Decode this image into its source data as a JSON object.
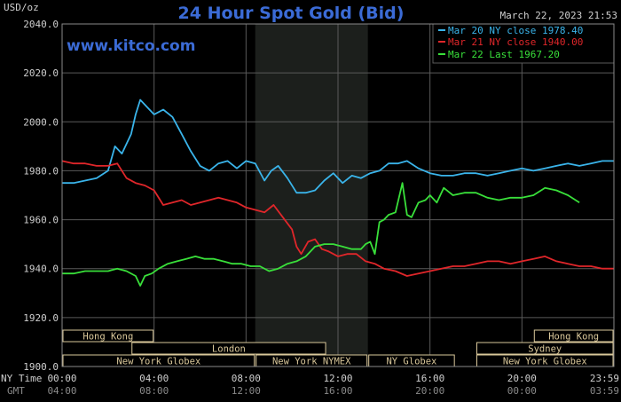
{
  "header": {
    "title": "24 Hour Spot Gold (Bid)",
    "unit": "USD/oz",
    "timestamp": "March 22, 2023 21:53",
    "watermark": "www.kitco.com"
  },
  "colors": {
    "background": "#000000",
    "plot_background": "#000000",
    "ny_session_shade": "#1c1f1c",
    "grid": "#5a5a5a",
    "title": "#3b6bd6",
    "watermark": "#3b6bd6",
    "axis_text": "#cfcfcf",
    "session_box": "#d9c79a"
  },
  "sessions": [
    {
      "label": "Hong Kong",
      "row": 0,
      "start": 0,
      "end": 4.0
    },
    {
      "label": "London",
      "row": 1,
      "start": 3.0,
      "end": 11.5
    },
    {
      "label": "New York Globex",
      "row": 2,
      "start": 0,
      "end": 8.4
    },
    {
      "label": "New York NYMEX",
      "row": 2,
      "start": 8.4,
      "end": 13.3
    },
    {
      "label": "NY Globex",
      "row": 2,
      "start": 13.3,
      "end": 17.1
    },
    {
      "label": "Hong Kong",
      "row": 0,
      "start": 20.5,
      "end": 24
    },
    {
      "label": "Sydney",
      "row": 1,
      "start": 18.0,
      "end": 24
    },
    {
      "label": "New York Globex",
      "row": 2,
      "start": 18.0,
      "end": 24
    }
  ],
  "chart_data": {
    "type": "line",
    "title": "24 Hour Spot Gold (Bid)",
    "ylabel": "USD/oz",
    "ylim": [
      1900,
      2040
    ],
    "yticks": [
      "2040.0",
      "2020.0",
      "2000.0",
      "1980.0",
      "1960.0",
      "1940.0",
      "1920.0",
      "1900.0"
    ],
    "xlim": [
      0,
      24
    ],
    "x_tick_positions": [
      0,
      4,
      8,
      12,
      16,
      20,
      24
    ],
    "x_ticks_ny": [
      "00:00",
      "04:00",
      "08:00",
      "12:00",
      "16:00",
      "20:00",
      "23:59"
    ],
    "x_ticks_gmt": [
      "04:00",
      "08:00",
      "12:00",
      "16:00",
      "20:00",
      "00:00",
      "03:59"
    ],
    "x_row_labels": [
      "NY Time",
      "GMT"
    ],
    "ny_session_shade": [
      8.4,
      13.3
    ],
    "grid": true,
    "legend_position": "top-right",
    "series": [
      {
        "name": "Mar 20 NY close 1978.40",
        "color": "#3ab4ea",
        "x": [
          0,
          0.5,
          1,
          1.5,
          2,
          2.3,
          2.6,
          3,
          3.2,
          3.4,
          3.6,
          3.8,
          4,
          4.4,
          4.8,
          5.2,
          5.6,
          6,
          6.4,
          6.8,
          7.2,
          7.6,
          8,
          8.4,
          8.8,
          9.1,
          9.4,
          9.8,
          10.2,
          10.6,
          11,
          11.4,
          11.8,
          12.2,
          12.6,
          13,
          13.4,
          13.8,
          14.2,
          14.6,
          15,
          15.5,
          16,
          16.5,
          17,
          17.5,
          18,
          18.5,
          19,
          19.5,
          20,
          20.5,
          21,
          21.5,
          22,
          22.5,
          23,
          23.5,
          24
        ],
        "y": [
          1975,
          1975,
          1976,
          1977,
          1980,
          1990,
          1987,
          1995,
          2003,
          2009,
          2007,
          2005,
          2003,
          2005,
          2002,
          1995,
          1988,
          1982,
          1980,
          1983,
          1984,
          1981,
          1984,
          1983,
          1976,
          1980,
          1982,
          1977,
          1971,
          1971,
          1972,
          1976,
          1979,
          1975,
          1978,
          1977,
          1979,
          1980,
          1983,
          1983,
          1984,
          1981,
          1979,
          1978,
          1978,
          1979,
          1979,
          1978,
          1979,
          1980,
          1981,
          1980,
          1981,
          1982,
          1983,
          1982,
          1983,
          1984,
          1984
        ]
      },
      {
        "name": "Mar 21 NY close 1940.00",
        "color": "#e0262a",
        "x": [
          0,
          0.5,
          1,
          1.5,
          2,
          2.4,
          2.8,
          3.2,
          3.6,
          4,
          4.4,
          4.8,
          5.2,
          5.6,
          6,
          6.4,
          6.8,
          7.2,
          7.6,
          8,
          8.4,
          8.8,
          9.2,
          9.6,
          10,
          10.2,
          10.4,
          10.7,
          11,
          11.3,
          11.6,
          12,
          12.4,
          12.8,
          13.2,
          13.6,
          14,
          14.5,
          15,
          15.5,
          16,
          16.5,
          17,
          17.5,
          18,
          18.5,
          19,
          19.5,
          20,
          20.5,
          21,
          21.5,
          22,
          22.5,
          23,
          23.5,
          24
        ],
        "y": [
          1984,
          1983,
          1983,
          1982,
          1982,
          1983,
          1977,
          1975,
          1974,
          1972,
          1966,
          1967,
          1968,
          1966,
          1967,
          1968,
          1969,
          1968,
          1967,
          1965,
          1964,
          1963,
          1966,
          1961,
          1956,
          1949,
          1946,
          1951,
          1952,
          1948,
          1947,
          1945,
          1946,
          1946,
          1943,
          1942,
          1940,
          1939,
          1937,
          1938,
          1939,
          1940,
          1941,
          1941,
          1942,
          1943,
          1943,
          1942,
          1943,
          1944,
          1945,
          1943,
          1942,
          1941,
          1941,
          1940,
          1940
        ]
      },
      {
        "name": "Mar 22 Last 1967.20",
        "color": "#39e03a",
        "x": [
          0,
          0.5,
          1,
          1.5,
          2,
          2.4,
          2.8,
          3.2,
          3.4,
          3.6,
          3.9,
          4.2,
          4.6,
          5,
          5.4,
          5.8,
          6.2,
          6.6,
          7,
          7.4,
          7.8,
          8.2,
          8.6,
          9,
          9.4,
          9.8,
          10.2,
          10.6,
          11,
          11.4,
          11.8,
          12.2,
          12.6,
          13,
          13.2,
          13.4,
          13.6,
          13.8,
          14,
          14.2,
          14.5,
          14.8,
          15,
          15.2,
          15.5,
          15.8,
          16,
          16.3,
          16.6,
          17,
          17.5,
          18,
          18.5,
          19,
          19.5,
          20,
          20.5,
          21,
          21.5,
          22,
          22.5
        ],
        "y": [
          1938,
          1938,
          1939,
          1939,
          1939,
          1940,
          1939,
          1937,
          1933,
          1937,
          1938,
          1940,
          1942,
          1943,
          1944,
          1945,
          1944,
          1944,
          1943,
          1942,
          1942,
          1941,
          1941,
          1939,
          1940,
          1942,
          1943,
          1945,
          1949,
          1950,
          1950,
          1949,
          1948,
          1948,
          1950,
          1951,
          1946,
          1959,
          1960,
          1962,
          1963,
          1975,
          1962,
          1961,
          1967,
          1968,
          1970,
          1967,
          1973,
          1970,
          1971,
          1971,
          1969,
          1968,
          1969,
          1969,
          1970,
          1973,
          1972,
          1970,
          1967
        ]
      }
    ]
  }
}
